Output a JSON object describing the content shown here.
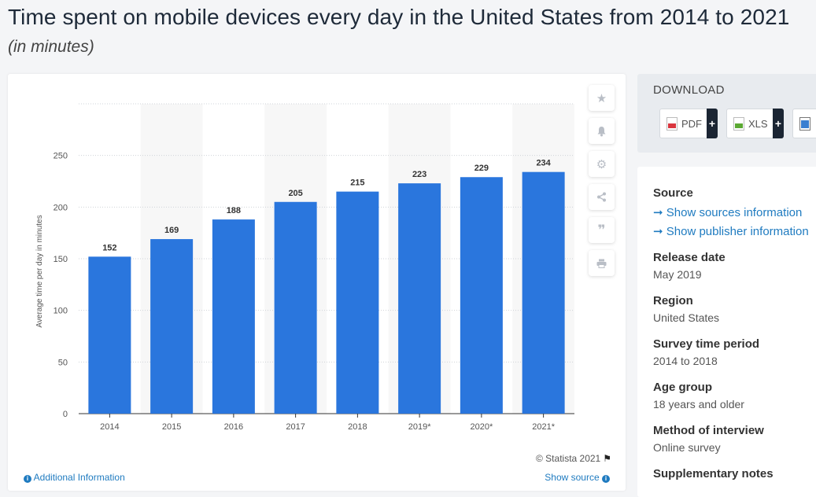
{
  "header": {
    "title": "Time spent on mobile devices every day in the United States from 2014 to 2021",
    "subtitle": "(in minutes)"
  },
  "toolbar": {
    "icons": [
      "star-icon",
      "bell-icon",
      "gear-icon",
      "share-icon",
      "quote-icon",
      "print-icon"
    ]
  },
  "chart_data": {
    "type": "bar",
    "categories": [
      "2014",
      "2015",
      "2016",
      "2017",
      "2018",
      "2019*",
      "2020*",
      "2021*"
    ],
    "values": [
      152,
      169,
      188,
      205,
      215,
      223,
      229,
      234
    ],
    "value_labels": [
      "152",
      "169",
      "188",
      "205",
      "215",
      "223",
      "229",
      "234"
    ],
    "ylabel": "Average time per day in minutes",
    "ylim": [
      0,
      300
    ],
    "yticks": [
      0,
      50,
      100,
      150,
      200,
      250
    ],
    "grid": true,
    "bar_color": "#2a76dd"
  },
  "footer": {
    "credit": "© Statista 2021",
    "additional_info": "Additional Information",
    "show_source": "Show source"
  },
  "download": {
    "title": "DOWNLOAD",
    "pdf_label": "PDF",
    "xls_label": "XLS",
    "plus": "+"
  },
  "details": {
    "source_heading": "Source",
    "show_sources": "Show sources information",
    "show_publisher": "Show publisher information",
    "release_date_heading": "Release date",
    "release_date": "May 2019",
    "region_heading": "Region",
    "region": "United States",
    "survey_period_heading": "Survey time period",
    "survey_period": "2014 to 2018",
    "age_group_heading": "Age group",
    "age_group": "18 years and older",
    "method_heading": "Method of interview",
    "method": "Online survey",
    "supplementary_heading": "Supplementary notes",
    "arrow": "➞"
  }
}
